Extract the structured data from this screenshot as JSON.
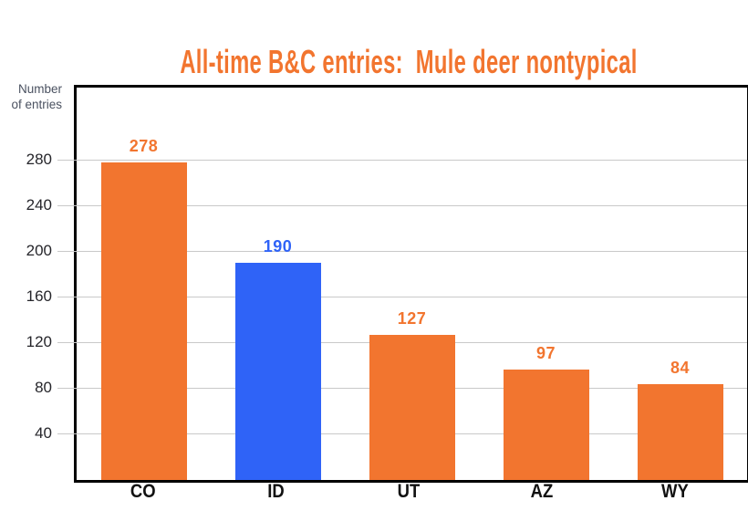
{
  "chart_data": {
    "type": "bar",
    "title": "All-time B&C entries:  Mule deer nontypical",
    "ylabel": "Number of entries",
    "xlabel": "",
    "categories": [
      "CO",
      "ID",
      "UT",
      "AZ",
      "WY"
    ],
    "values": [
      278,
      190,
      127,
      97,
      84
    ],
    "bar_colors": [
      "#F2752F",
      "#2F63F7",
      "#F2752F",
      "#F2752F",
      "#F2752F"
    ],
    "value_label_colors": [
      "#F2752F",
      "#2F63F7",
      "#F2752F",
      "#F2752F",
      "#F2752F"
    ],
    "yticks": [
      40,
      80,
      120,
      160,
      200,
      240,
      280
    ],
    "ylim": [
      0,
      339
    ],
    "grid": "horizontal",
    "legend": "none"
  },
  "colors": {
    "background": "#FFFFFF",
    "title": "#F2752F",
    "accent_orange": "#F2752F",
    "accent_blue": "#2F63F7",
    "gridline": "#C9C9C9",
    "axis_border": "#000000",
    "y_tick_label": "#26262B",
    "x_category_label": "#111111",
    "y_unit_label": "#4A5160"
  }
}
